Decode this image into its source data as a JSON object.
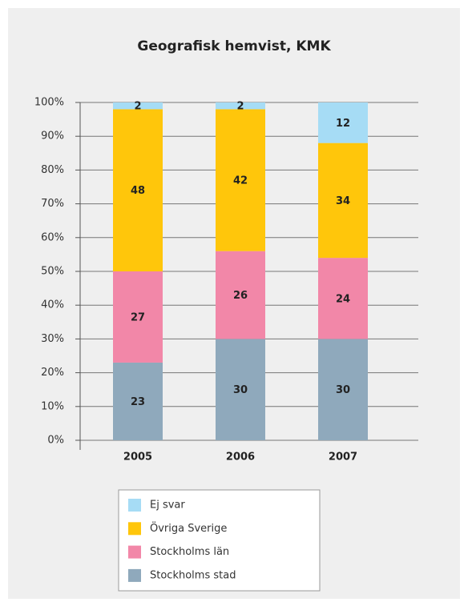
{
  "chart_data": {
    "type": "stacked_bar",
    "title": "Geografisk hemvist, KMK",
    "categories": [
      "2005",
      "2006",
      "2007"
    ],
    "series": [
      {
        "name": "Stockholms stad",
        "color": "#8fa9bc",
        "values": [
          23,
          30,
          30
        ]
      },
      {
        "name": "Stockholms län",
        "color": "#f287a8",
        "values": [
          27,
          26,
          24
        ]
      },
      {
        "name": "Övriga Sverige",
        "color": "#ffc60b",
        "values": [
          48,
          42,
          34
        ]
      },
      {
        "name": "Ej svar",
        "color": "#a6dcf5",
        "values": [
          2,
          2,
          12
        ]
      }
    ],
    "ylim": [
      0,
      100
    ],
    "yticks": [
      {
        "value": 0,
        "label": "0%"
      },
      {
        "value": 10,
        "label": "10%"
      },
      {
        "value": 20,
        "label": "20%"
      },
      {
        "value": 30,
        "label": "30%"
      },
      {
        "value": 40,
        "label": "40%"
      },
      {
        "value": 50,
        "label": "50%"
      },
      {
        "value": 60,
        "label": "60%"
      },
      {
        "value": 70,
        "label": "70%"
      },
      {
        "value": 80,
        "label": "80%"
      },
      {
        "value": 90,
        "label": "90%"
      },
      {
        "value": 100,
        "label": "100%"
      }
    ],
    "grid": true
  }
}
